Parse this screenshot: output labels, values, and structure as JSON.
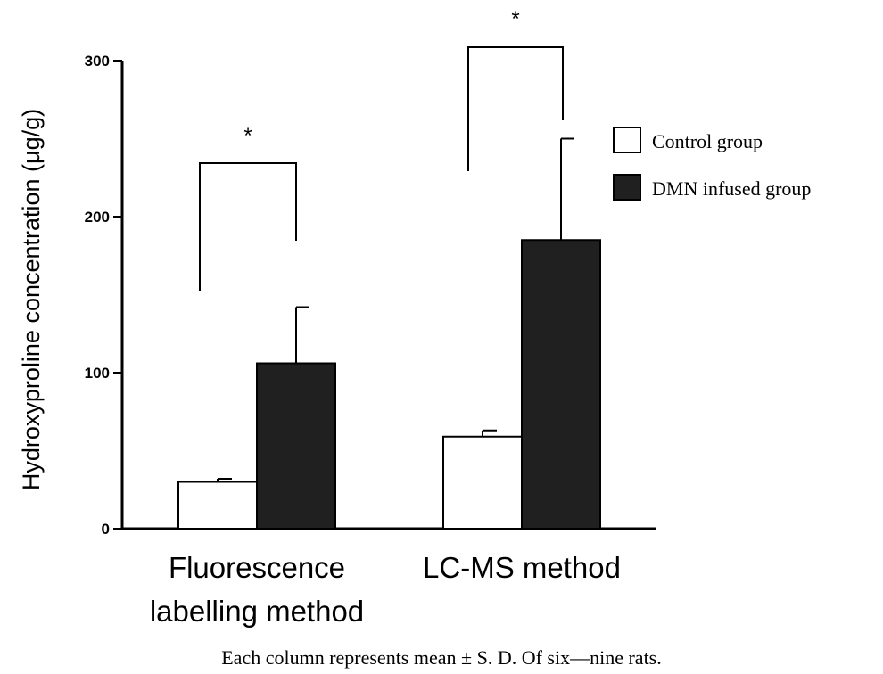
{
  "chart_data": {
    "type": "bar",
    "ylabel": "Hydroxyproline concentration  (μg/g)",
    "ylim": [
      0,
      300
    ],
    "yticks": [
      0,
      100,
      200,
      300
    ],
    "categories": [
      "Fluorescence labelling method",
      "LC-MS method"
    ],
    "category_lines": [
      [
        "Fluorescence",
        "labelling method"
      ],
      [
        "LC-MS method"
      ]
    ],
    "series": [
      {
        "name": "Control group",
        "fill": "#ffffff",
        "values": [
          30,
          59
        ],
        "errors": [
          2,
          4
        ]
      },
      {
        "name": "DMN infused group",
        "fill": "#202020",
        "values": [
          106,
          185
        ],
        "errors": [
          36,
          65
        ]
      }
    ],
    "significance_marker": "*",
    "legend_position": "right",
    "footnote": "Each column represents mean ± S. D. Of  six—nine  rats."
  }
}
